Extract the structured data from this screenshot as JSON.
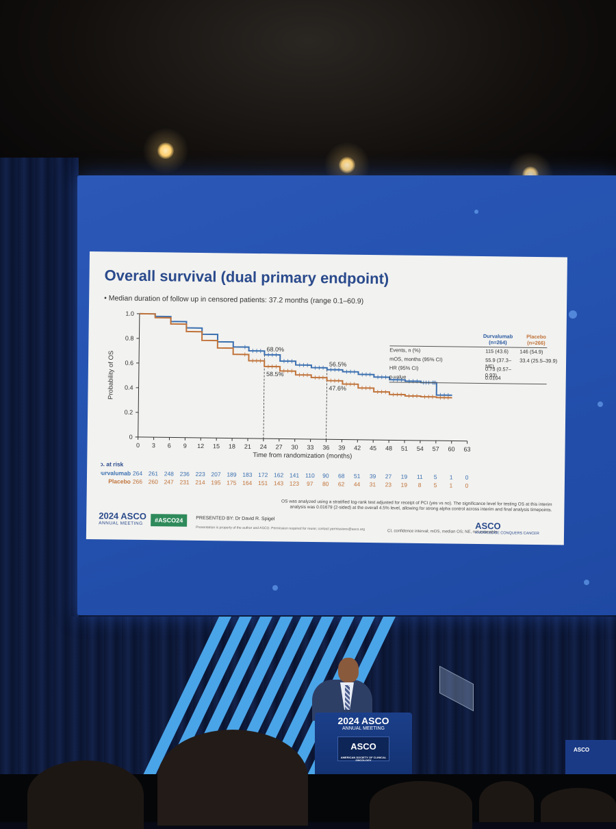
{
  "slide": {
    "title": "Overall survival (dual primary endpoint)",
    "subtitle": "•  Median duration of follow up in censored patients: 37.2 months (range 0.1–60.9)",
    "footnote_line1": "OS was analyzed using a stratified log-rank test adjusted for receipt of PCI (yes vs no). The significance level for testing OS at this interim",
    "footnote_line2": "analysis was 0.01679 (2-sided) at the overall 4.5% level, allowing for strong alpha control across interim and final analysis timepoints.",
    "ci_note": "CI, confidence interval; mOS, median OS; NE, not estimable",
    "hashtag": "#ASCO24",
    "presented_by": "PRESENTED BY:  Dr David R. Spigel",
    "presented_note": "Presentation is property of the author and ASCO. Permission required for reuse; contact permissions@asco.org",
    "logo_left_big": "2024 ASCO",
    "logo_left_small": "ANNUAL MEETING",
    "logo_right_big": "ASCO",
    "logo_right_small": "KNOWLEDGE CONQUERS CANCER"
  },
  "table": {
    "col1_header": "Durvalumab (n=264)",
    "col2_header": "Placebo (n=266)",
    "rows": [
      {
        "label": "Events, n (%)",
        "d": "115 (43.6)",
        "p": "146 (54.9)"
      },
      {
        "label": "mOS, months (95% CI)",
        "d": "55.9 (37.3–NE)",
        "p": "33.4 (25.5–39.9)"
      },
      {
        "label": "HR (95% CI)",
        "d": "0.73 (0.57–0.93)",
        "p": ""
      },
      {
        "label": "p-value",
        "d": "0.0104",
        "p": ""
      }
    ]
  },
  "chart_data": {
    "type": "line",
    "title": "Overall survival (dual primary endpoint)",
    "xlabel": "Time from randomization (months)",
    "ylabel": "Probability of OS",
    "xlim": [
      0,
      63
    ],
    "ylim": [
      0,
      1.0
    ],
    "x_ticks": [
      0,
      3,
      6,
      9,
      12,
      15,
      18,
      21,
      24,
      27,
      30,
      33,
      36,
      39,
      42,
      45,
      48,
      51,
      54,
      57,
      60,
      63
    ],
    "y_ticks": [
      0,
      0.2,
      0.4,
      0.6,
      0.8,
      1.0
    ],
    "y_tick_labels": [
      "0",
      "0.2",
      "0.4",
      "0.6",
      "0.8",
      "1.0"
    ],
    "series": [
      {
        "name": "Durvalumab",
        "color": "#3a6fb0",
        "x": [
          0,
          3,
          6,
          9,
          12,
          15,
          18,
          21,
          24,
          27,
          30,
          33,
          36,
          39,
          42,
          45,
          48,
          51,
          54,
          56,
          57,
          60
        ],
        "y": [
          1.0,
          0.98,
          0.94,
          0.89,
          0.84,
          0.78,
          0.74,
          0.71,
          0.68,
          0.63,
          0.6,
          0.58,
          0.565,
          0.55,
          0.53,
          0.51,
          0.49,
          0.48,
          0.47,
          0.47,
          0.37,
          0.37
        ]
      },
      {
        "name": "Placebo",
        "color": "#c0733a",
        "x": [
          0,
          3,
          6,
          9,
          12,
          15,
          18,
          21,
          24,
          27,
          30,
          33,
          36,
          39,
          42,
          45,
          48,
          51,
          54,
          57,
          60
        ],
        "y": [
          1.0,
          0.97,
          0.92,
          0.86,
          0.79,
          0.73,
          0.68,
          0.63,
          0.585,
          0.55,
          0.52,
          0.5,
          0.476,
          0.45,
          0.42,
          0.39,
          0.37,
          0.36,
          0.355,
          0.35,
          0.35
        ]
      }
    ],
    "annotations": [
      {
        "x": 24,
        "y": 0.68,
        "text": "68.0%",
        "series": "Durvalumab"
      },
      {
        "x": 24,
        "y": 0.585,
        "text": "58.5%",
        "series": "Placebo"
      },
      {
        "x": 36,
        "y": 0.565,
        "text": "56.5%",
        "series": "Durvalumab"
      },
      {
        "x": 36,
        "y": 0.476,
        "text": "47.6%",
        "series": "Placebo"
      }
    ],
    "risk_table": {
      "label": "No. at risk",
      "rows": [
        {
          "name": "Durvalumab",
          "color": "#3a6fb0",
          "values": [
            "264",
            "261",
            "248",
            "236",
            "223",
            "207",
            "189",
            "183",
            "172",
            "162",
            "141",
            "110",
            "90",
            "68",
            "51",
            "39",
            "27",
            "19",
            "11",
            "5",
            "1",
            "0"
          ]
        },
        {
          "name": "Placebo",
          "color": "#c0733a",
          "values": [
            "266",
            "260",
            "247",
            "231",
            "214",
            "195",
            "175",
            "164",
            "151",
            "143",
            "123",
            "97",
            "80",
            "62",
            "44",
            "31",
            "23",
            "19",
            "8",
            "5",
            "1",
            "0"
          ]
        }
      ]
    }
  },
  "venue": {
    "lectern_line1": "2024 ASCO",
    "lectern_line2": "ANNUAL MEETING",
    "lectern_logo": "ASCO",
    "lectern_logo_sub": "AMERICAN SOCIETY OF CLINICAL ONCOLOGY",
    "sign_text": "ASCO"
  }
}
